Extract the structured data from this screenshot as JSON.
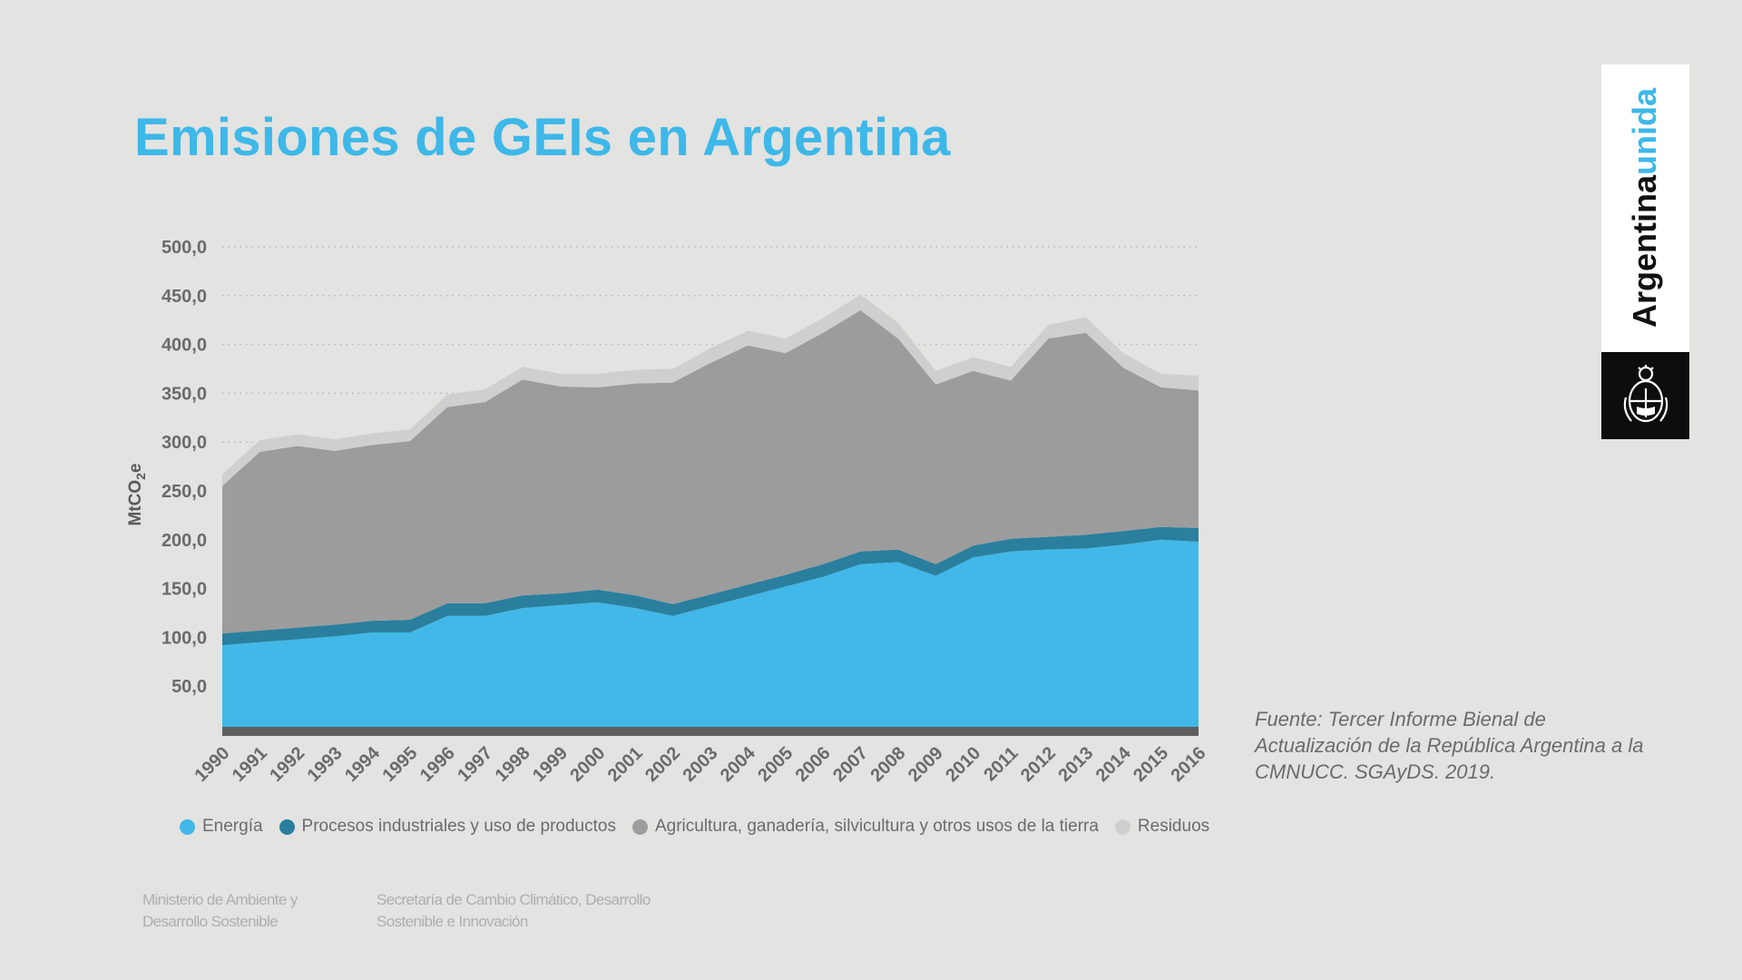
{
  "title": "Emisiones de GEIs en Argentina",
  "brand": {
    "word1": "Argentina",
    "word2": "unida"
  },
  "source": "Fuente: Tercer Informe Bienal de Actualización de la República Argentina a la CMNUCC. SGAyDS. 2019.",
  "footer": {
    "left": "Ministerio de Ambiente y Desarrollo Sostenible",
    "right": "Secretaría de Cambio Climático, Desarrollo Sostenible e Innovación"
  },
  "colors": {
    "title": "#3db8e8",
    "energia": "#42b8e8",
    "procesos": "#2a7f9e",
    "agricultura": "#9c9c9c",
    "residuos": "#cfcfcf",
    "baseline": "#5f5f5f"
  },
  "chart_data": {
    "type": "area",
    "stacked": true,
    "ylabel": "MtCO2e",
    "ylim": [
      0,
      500
    ],
    "yticks": [
      "500,0",
      "450,0",
      "400,0",
      "350,0",
      "300,0",
      "250,0",
      "200,0",
      "150,0",
      "100,0",
      "50,0"
    ],
    "x": [
      "1990",
      "1991",
      "1992",
      "1993",
      "1994",
      "1995",
      "1996",
      "1997",
      "1998",
      "1999",
      "2000",
      "2001",
      "2002",
      "2003",
      "2004",
      "2005",
      "2006",
      "2007",
      "2008",
      "2009",
      "2010",
      "2011",
      "2012",
      "2013",
      "2014",
      "2015",
      "2016"
    ],
    "series": [
      {
        "name": "Energía",
        "key": "energia",
        "values": [
          92,
          95,
          98,
          101,
          105,
          105,
          122,
          122,
          130,
          133,
          136,
          130,
          122,
          132,
          142,
          152,
          162,
          175,
          177,
          163,
          182,
          188,
          190,
          191,
          195,
          200,
          198
        ]
      },
      {
        "name": "Procesos industriales y uso de productos",
        "key": "procesos",
        "values": [
          12,
          12,
          12,
          12,
          12,
          13,
          13,
          13,
          13,
          12,
          13,
          13,
          12,
          12,
          12,
          12,
          13,
          13,
          13,
          12,
          12,
          13,
          13,
          14,
          14,
          13,
          14
        ]
      },
      {
        "name": "Agricultura, ganadería, silvicultura y otros usos de la tierra",
        "key": "agricultura",
        "values": [
          151,
          183,
          186,
          178,
          180,
          183,
          201,
          206,
          221,
          212,
          207,
          217,
          227,
          237,
          245,
          227,
          237,
          247,
          216,
          184,
          179,
          162,
          203,
          207,
          167,
          143,
          141
        ]
      },
      {
        "name": "Residuos",
        "key": "residuos",
        "values": [
          12,
          12,
          12,
          12,
          12,
          12,
          13,
          13,
          13,
          13,
          14,
          14,
          14,
          15,
          15,
          15,
          15,
          16,
          16,
          14,
          14,
          14,
          14,
          16,
          15,
          14,
          15
        ]
      }
    ],
    "grid": true,
    "legend": "bottom"
  }
}
